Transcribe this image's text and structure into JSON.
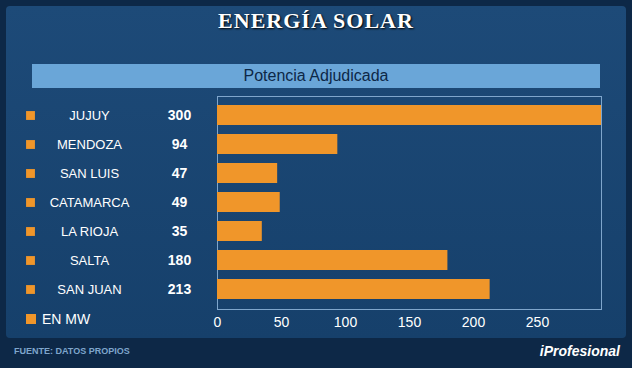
{
  "chart_data": {
    "type": "bar",
    "title": "ENERGÍA SOLAR",
    "subtitle": "Potencia Adjudicada",
    "orientation": "horizontal",
    "categories": [
      "JUJUY",
      "MENDOZA",
      "SAN LUIS",
      "CATAMARCA",
      "LA RIOJA",
      "SALTA",
      "SAN JUAN"
    ],
    "series": [
      {
        "name": "EN MW",
        "color": "#f0962a",
        "values": [
          300,
          94,
          47,
          49,
          35,
          180,
          213
        ]
      }
    ],
    "xlim": [
      0,
      300
    ],
    "xticks": [
      0,
      50,
      100,
      150,
      200,
      250
    ],
    "grid": false,
    "data_labels": true,
    "annotations": [
      "FUENTE: DATOS PROPIOS",
      "iProfesional"
    ]
  }
}
